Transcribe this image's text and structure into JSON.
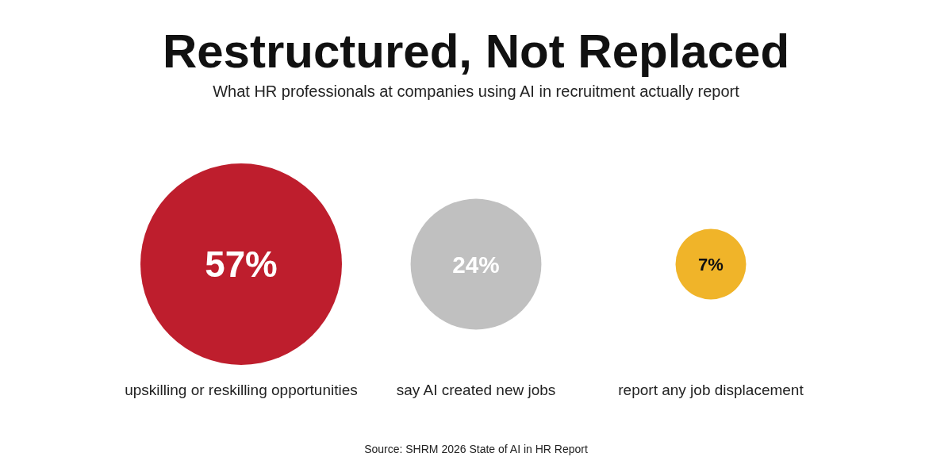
{
  "chart_data": {
    "type": "other",
    "title": "Restructured, Not Replaced",
    "subtitle": "What HR professionals at companies using AI in recruitment actually report",
    "categories": [
      "upskilling or reskilling opportunities",
      "say AI created new jobs",
      "report any job displacement"
    ],
    "values": [
      57,
      24,
      7
    ],
    "colors": [
      "#be1e2d",
      "#c0c0c0",
      "#f0b429"
    ],
    "value_labels": [
      "57%",
      "24%",
      "7%"
    ],
    "annotations": [
      "Source: SHRM 2026 State of AI in HR Report"
    ]
  }
}
